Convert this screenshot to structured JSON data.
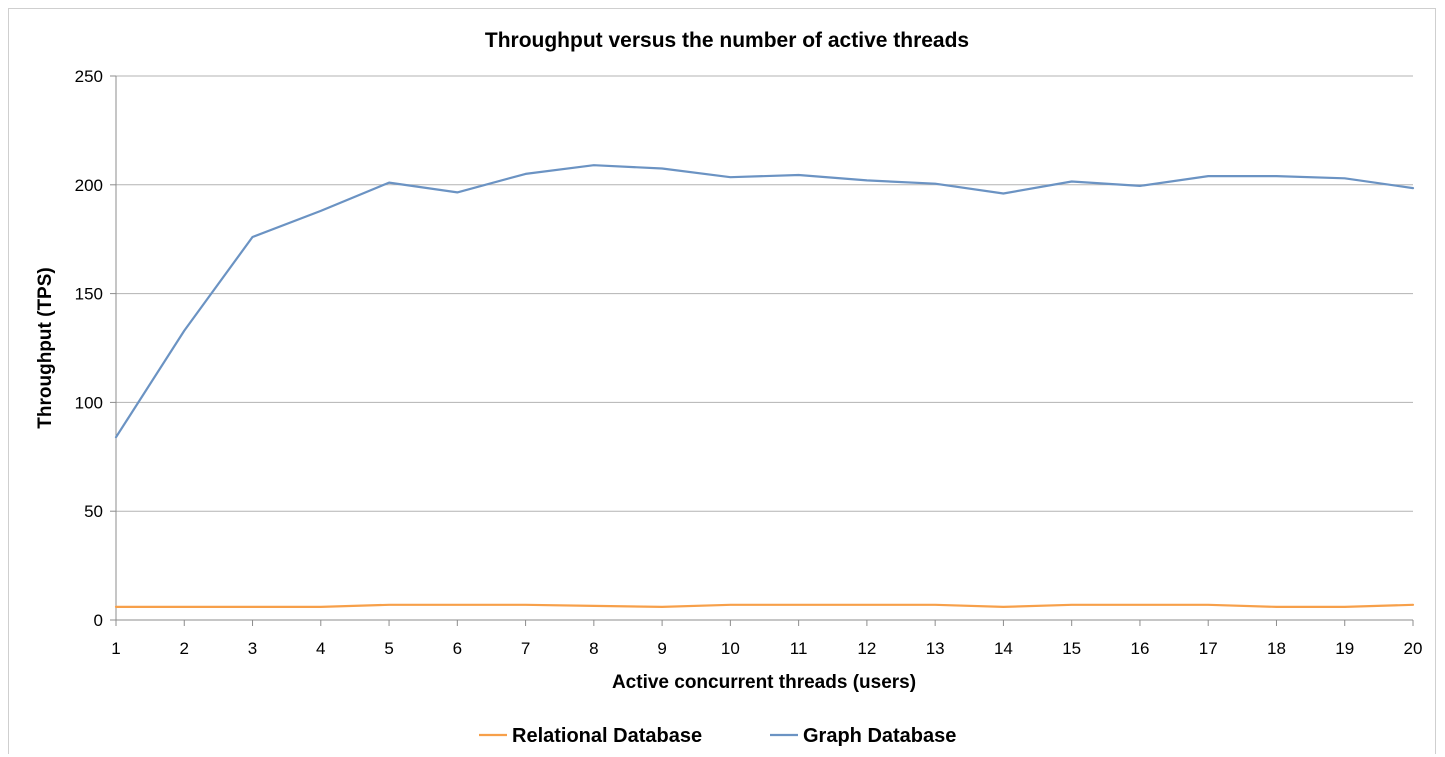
{
  "chart_data": {
    "type": "line",
    "title": "Throughput versus the number of active threads",
    "xlabel": "Active concurrent threads (users)",
    "ylabel": "Throughput (TPS)",
    "x": [
      1,
      2,
      3,
      4,
      5,
      6,
      7,
      8,
      9,
      10,
      11,
      12,
      13,
      14,
      15,
      16,
      17,
      18,
      19,
      20
    ],
    "ylim": [
      0,
      250
    ],
    "yticks": [
      0,
      50,
      100,
      150,
      200,
      250
    ],
    "grid": true,
    "legend_position": "bottom",
    "series": [
      {
        "name": "Relational Database",
        "color": "#f7a04a",
        "values": [
          6,
          6,
          6,
          6,
          7,
          7,
          7,
          6.5,
          6,
          7,
          7,
          7,
          7,
          6,
          7,
          7,
          7,
          6,
          6,
          7
        ]
      },
      {
        "name": "Graph Database",
        "color": "#6b93c3",
        "values": [
          84,
          133,
          176,
          188,
          201,
          196.5,
          205,
          209,
          207.5,
          203.5,
          204.5,
          202,
          200.5,
          196,
          201.5,
          199.5,
          204,
          204,
          203,
          198.5
        ]
      }
    ]
  }
}
